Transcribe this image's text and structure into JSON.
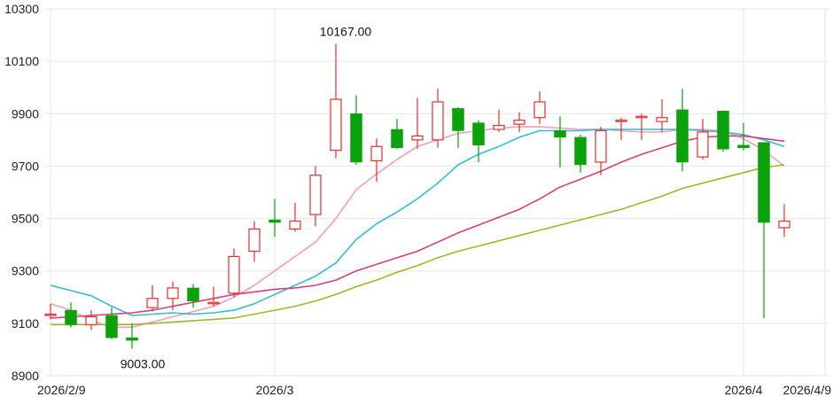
{
  "colors": {
    "up": "#e0312f",
    "down": "#0aa10a",
    "ma_pink": "#f0a0b8",
    "ma_cyan": "#33bdd1",
    "ma_magenta": "#d63f79",
    "ma_olive": "#9cb82c",
    "grid": "#e6e6e6"
  },
  "chart_data": {
    "type": "candlestick",
    "grid": true,
    "ylim": [
      8900,
      10300
    ],
    "y_ticks": [
      8900,
      9100,
      9300,
      9500,
      9700,
      9900,
      10100,
      10300
    ],
    "y_tick_labels": [
      "8900",
      "9100",
      "9300",
      "9500",
      "9700",
      "9900",
      "10100",
      "10300"
    ],
    "x_ticks": [
      {
        "index": 0,
        "label": "2026/2/9"
      },
      {
        "index": 11,
        "label": "2026/3"
      },
      {
        "index": 34,
        "label": "2026/4"
      },
      {
        "index": 38,
        "label": "2026/4/9"
      }
    ],
    "candles": [
      {
        "open": 9135,
        "close": 9135,
        "high": 9175,
        "low": 9115
      },
      {
        "open": 9150,
        "close": 9095,
        "high": 9180,
        "low": 9085
      },
      {
        "open": 9095,
        "close": 9125,
        "high": 9150,
        "low": 9075
      },
      {
        "open": 9130,
        "close": 9045,
        "high": 9160,
        "low": 9040
      },
      {
        "open": 9045,
        "close": 9035,
        "high": 9100,
        "low": 9003
      },
      {
        "open": 9160,
        "close": 9195,
        "high": 9245,
        "low": 9145
      },
      {
        "open": 9195,
        "close": 9235,
        "high": 9260,
        "low": 9150
      },
      {
        "open": 9235,
        "close": 9185,
        "high": 9250,
        "low": 9160
      },
      {
        "open": 9175,
        "close": 9180,
        "high": 9240,
        "low": 9165
      },
      {
        "open": 9215,
        "close": 9355,
        "high": 9385,
        "low": 9200
      },
      {
        "open": 9375,
        "close": 9460,
        "high": 9490,
        "low": 9335
      },
      {
        "open": 9495,
        "close": 9485,
        "high": 9575,
        "low": 9430
      },
      {
        "open": 9460,
        "close": 9490,
        "high": 9560,
        "low": 9450
      },
      {
        "open": 9515,
        "close": 9665,
        "high": 9700,
        "low": 9470
      },
      {
        "open": 9760,
        "close": 9955,
        "high": 10167,
        "low": 9730
      },
      {
        "open": 9900,
        "close": 9715,
        "high": 9970,
        "low": 9705
      },
      {
        "open": 9720,
        "close": 9775,
        "high": 9805,
        "low": 9640
      },
      {
        "open": 9840,
        "close": 9770,
        "high": 9880,
        "low": 9765
      },
      {
        "open": 9800,
        "close": 9815,
        "high": 9960,
        "low": 9765
      },
      {
        "open": 9800,
        "close": 9945,
        "high": 9995,
        "low": 9770
      },
      {
        "open": 9920,
        "close": 9835,
        "high": 9925,
        "low": 9770
      },
      {
        "open": 9865,
        "close": 9780,
        "high": 9875,
        "low": 9715
      },
      {
        "open": 9840,
        "close": 9855,
        "high": 9915,
        "low": 9830
      },
      {
        "open": 9860,
        "close": 9875,
        "high": 9905,
        "low": 9830
      },
      {
        "open": 9885,
        "close": 9945,
        "high": 9985,
        "low": 9860
      },
      {
        "open": 9835,
        "close": 9810,
        "high": 9890,
        "low": 9695
      },
      {
        "open": 9810,
        "close": 9705,
        "high": 9820,
        "low": 9675
      },
      {
        "open": 9715,
        "close": 9835,
        "high": 9850,
        "low": 9665
      },
      {
        "open": 9870,
        "close": 9875,
        "high": 9885,
        "low": 9800
      },
      {
        "open": 9885,
        "close": 9890,
        "high": 9900,
        "low": 9800
      },
      {
        "open": 9870,
        "close": 9885,
        "high": 9955,
        "low": 9830
      },
      {
        "open": 9915,
        "close": 9715,
        "high": 9995,
        "low": 9680
      },
      {
        "open": 9735,
        "close": 9830,
        "high": 9880,
        "low": 9725
      },
      {
        "open": 9910,
        "close": 9765,
        "high": 9910,
        "low": 9755
      },
      {
        "open": 9780,
        "close": 9770,
        "high": 9865,
        "low": 9760
      },
      {
        "open": 9790,
        "close": 9485,
        "high": 9790,
        "low": 9120
      },
      {
        "open": 9465,
        "close": 9490,
        "high": 9555,
        "low": 9430
      }
    ],
    "moving_averages": [
      {
        "color_key": "ma_pink",
        "values": [
          9175,
          9150,
          9110,
          9085,
          9085,
          9105,
          9125,
          9145,
          9165,
          9200,
          9245,
          9300,
          9355,
          9410,
          9500,
          9610,
          9670,
          9725,
          9775,
          9800,
          9825,
          9835,
          9845,
          9850,
          9850,
          9845,
          9840,
          9840,
          9835,
          9830,
          9830,
          9840,
          9840,
          9835,
          9805,
          9760,
          9700
        ]
      },
      {
        "color_key": "ma_cyan",
        "values": [
          9245,
          9225,
          9205,
          9165,
          9130,
          9135,
          9140,
          9135,
          9140,
          9150,
          9175,
          9210,
          9245,
          9280,
          9330,
          9420,
          9480,
          9525,
          9575,
          9635,
          9705,
          9745,
          9775,
          9810,
          9835,
          9835,
          9835,
          9840,
          9840,
          9840,
          9840,
          9840,
          9835,
          9830,
          9820,
          9800,
          9775
        ]
      },
      {
        "color_key": "ma_magenta",
        "values": [
          9120,
          9125,
          9130,
          9135,
          9140,
          9150,
          9165,
          9180,
          9195,
          9210,
          9220,
          9230,
          9235,
          9245,
          9265,
          9300,
          9325,
          9350,
          9375,
          9410,
          9445,
          9475,
          9505,
          9535,
          9575,
          9620,
          9650,
          9680,
          9715,
          9745,
          9770,
          9795,
          9810,
          9815,
          9815,
          9805,
          9795
        ]
      },
      {
        "color_key": "ma_olive",
        "values": [
          9095,
          9095,
          9095,
          9095,
          9095,
          9100,
          9105,
          9110,
          9115,
          9120,
          9135,
          9150,
          9165,
          9185,
          9210,
          9240,
          9265,
          9295,
          9320,
          9350,
          9375,
          9395,
          9415,
          9435,
          9455,
          9475,
          9495,
          9515,
          9535,
          9560,
          9585,
          9615,
          9635,
          9655,
          9675,
          9695,
          9705
        ]
      }
    ],
    "annotations": [
      {
        "text": "10167.00",
        "candle": 14,
        "value": 10167,
        "position": "above"
      },
      {
        "text": "9003.00",
        "candle": 4,
        "value": 9003,
        "position": "below"
      }
    ]
  }
}
